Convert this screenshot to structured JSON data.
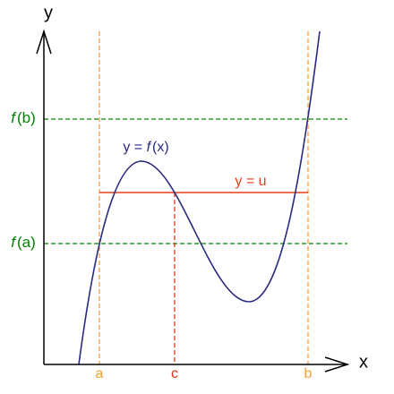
{
  "axes": {
    "x": "x",
    "y": "y"
  },
  "levels": {
    "fb": {
      "f": "f",
      "rest": "(b)"
    },
    "fa": {
      "f": "f",
      "rest": "(a)"
    }
  },
  "points": {
    "a": "a",
    "c": "c",
    "b": "b"
  },
  "curve_label": {
    "lead": "y = ",
    "f": "f",
    "rest": "(x)"
  },
  "line_label": "y = u"
}
